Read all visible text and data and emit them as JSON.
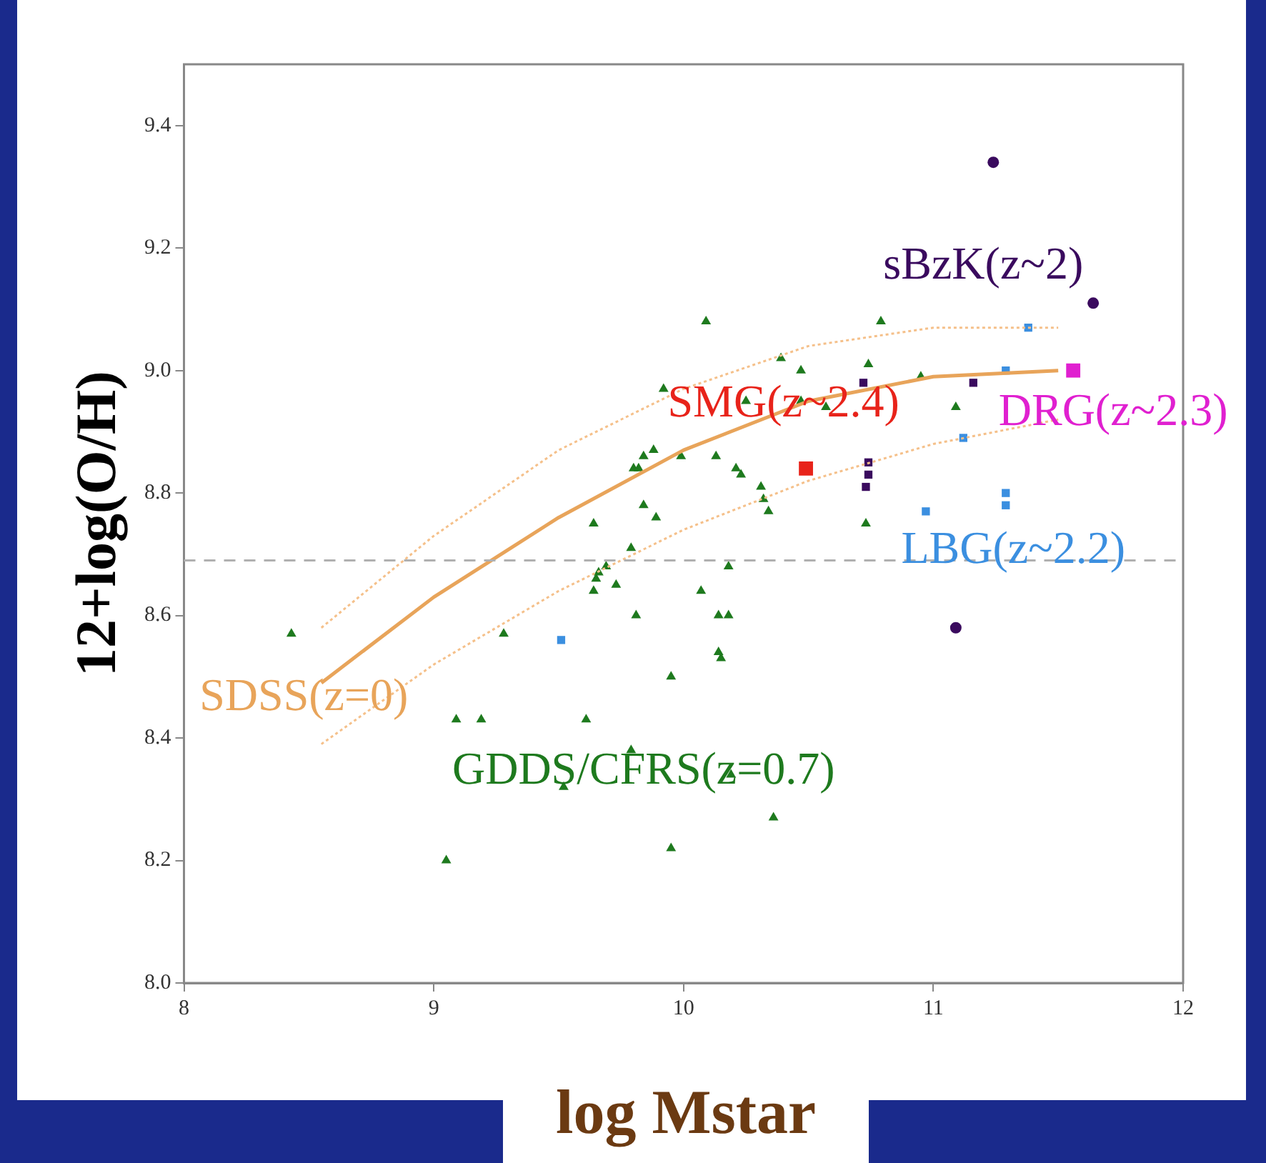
{
  "chart_data": {
    "type": "scatter",
    "xlabel": "log Mstar",
    "ylabel": "12+log(O/H)",
    "xlim": [
      8,
      12
    ],
    "xticks": [
      8,
      9,
      10,
      11,
      12
    ],
    "ylim": [
      8,
      9.5
    ],
    "yticks": [
      {
        "value": 8,
        "label": "8.0"
      },
      8.2,
      8.4,
      8.6,
      8.8,
      {
        "value": 9,
        "label": "9.0"
      },
      9.2,
      9.4
    ],
    "grid": false,
    "legend": false,
    "ref_lines": [
      {
        "axis": "y",
        "value": 8.69,
        "color": "#b0b0b0",
        "line_style": "dashed"
      }
    ],
    "series": [
      {
        "name": "SDSS(z=0)",
        "type": "line",
        "marker": "none",
        "line_style": "solid",
        "color": "#e8a45a",
        "x": [
          8.55,
          9.0,
          9.5,
          10.0,
          10.5,
          11.0,
          11.5
        ],
        "values": [
          8.49,
          8.63,
          8.76,
          8.87,
          8.95,
          8.99,
          9.0
        ]
      },
      {
        "type": "line",
        "marker": "none",
        "line_style": "dotted",
        "color": "#f5c08a",
        "x": [
          8.55,
          9.0,
          9.5,
          10.0,
          10.5,
          11.0,
          11.5
        ],
        "values": [
          8.58,
          8.73,
          8.87,
          8.97,
          9.04,
          9.07,
          9.07
        ]
      },
      {
        "type": "line",
        "marker": "none",
        "line_style": "dotted",
        "color": "#f5c08a",
        "x": [
          8.55,
          9.0,
          9.5,
          10.0,
          10.5,
          11.0,
          11.5
        ],
        "values": [
          8.39,
          8.52,
          8.64,
          8.74,
          8.82,
          8.88,
          8.92
        ]
      },
      {
        "name": "GDDS/CFRS(z=0.7)",
        "marker": "triangle",
        "color": "#1e7a1e",
        "x": [
          8.43,
          9.28,
          9.09,
          9.19,
          9.61,
          9.52,
          9.05,
          9.95,
          9.95,
          10.15,
          10.14,
          10.14,
          10.18,
          10.07,
          9.81,
          10.18,
          9.73,
          9.64,
          9.66,
          9.69,
          9.65,
          9.79,
          9.64,
          9.84,
          9.89,
          9.8,
          9.82,
          9.84,
          9.88,
          9.92,
          9.99,
          10.13,
          10.21,
          10.23,
          10.25,
          10.31,
          10.32,
          10.34,
          10.39,
          10.47,
          10.47,
          10.57,
          10.74,
          10.79,
          10.09,
          10.73,
          10.95,
          11.09,
          9.79,
          10.19,
          10.36
        ],
        "values": [
          8.57,
          8.57,
          8.43,
          8.43,
          8.43,
          8.32,
          8.2,
          8.22,
          8.5,
          8.53,
          8.54,
          8.6,
          8.6,
          8.64,
          8.6,
          8.68,
          8.65,
          8.64,
          8.67,
          8.68,
          8.66,
          8.71,
          8.75,
          8.78,
          8.76,
          8.84,
          8.84,
          8.86,
          8.87,
          8.97,
          8.86,
          8.86,
          8.84,
          8.83,
          8.95,
          8.81,
          8.79,
          8.77,
          9.02,
          9.0,
          8.95,
          8.94,
          9.01,
          9.08,
          9.08,
          8.75,
          8.99,
          8.94,
          8.38,
          8.34,
          8.27
        ]
      },
      {
        "name": "SMG(z~2.4)",
        "marker": "square",
        "color": "#e8231a",
        "x": [
          10.49
        ],
        "values": [
          8.84
        ]
      },
      {
        "name": "sBzK(z~2)",
        "marker": "circle",
        "color": "#3a0a5e",
        "x": [
          11.24,
          11.64,
          11.09
        ],
        "values": [
          9.34,
          9.11,
          8.58
        ]
      },
      {
        "marker": "square",
        "color": "#3a0a5e",
        "x": [
          10.72,
          11.16,
          10.74,
          10.74,
          10.73
        ],
        "values": [
          8.98,
          8.98,
          8.85,
          8.83,
          8.81
        ]
      },
      {
        "name": "LBG(z~2.2)",
        "marker": "square",
        "color": "#3b8fe0",
        "x": [
          11.38,
          11.29,
          9.51,
          11.12,
          10.97,
          11.29,
          11.29
        ],
        "values": [
          9.07,
          9.0,
          8.56,
          8.89,
          8.77,
          8.8,
          8.78
        ]
      },
      {
        "name": "DRG(z~2.3)",
        "marker": "square",
        "color": "#e020d0",
        "x": [
          11.56
        ],
        "values": [
          9.0
        ]
      }
    ]
  }
}
